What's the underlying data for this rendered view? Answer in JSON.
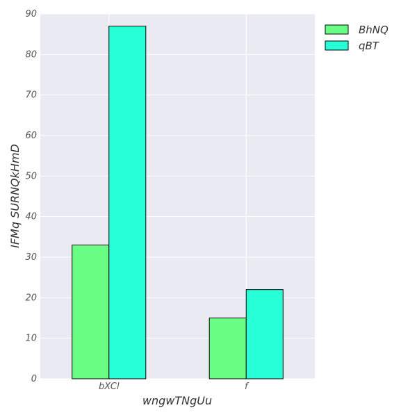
{
  "chart_data": {
    "type": "bar",
    "categories": [
      "bXCl",
      "f"
    ],
    "series": [
      {
        "name": "BhNQ",
        "values": [
          33,
          15
        ],
        "color": "#6aff84"
      },
      {
        "name": "qBT",
        "values": [
          87,
          22
        ],
        "color": "#27ffd6"
      }
    ],
    "xlabel": "wngwTNgUu",
    "ylabel": "IFMq SURNQkHmD",
    "ylim": [
      0,
      90
    ],
    "yticks": [
      0,
      10,
      20,
      30,
      40,
      50,
      60,
      70,
      80,
      90
    ],
    "grid": true,
    "legend_position": "top-right",
    "background_color": "#eaeaf2"
  }
}
